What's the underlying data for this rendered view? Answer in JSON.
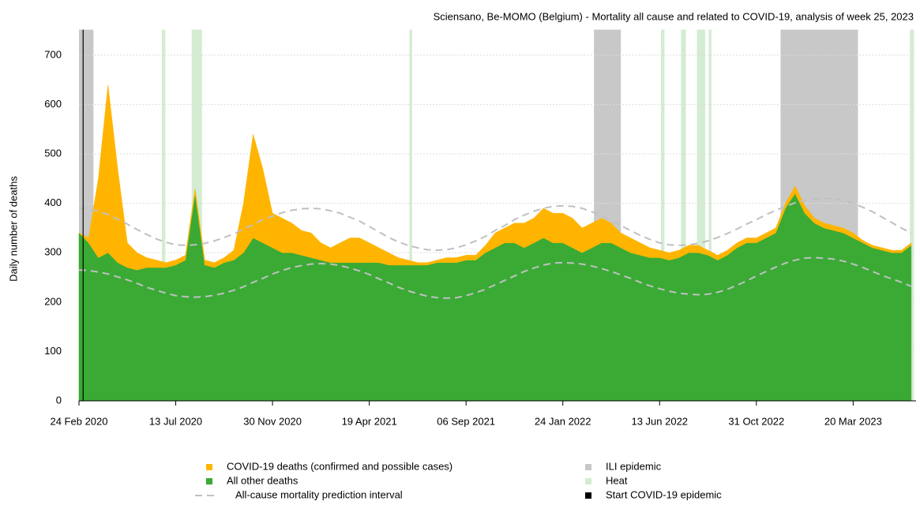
{
  "chart_data": {
    "type": "stacked_area",
    "title": "Sciensano, Be-MOMO (Belgium) - Mortality all cause and related to COVID-19, analysis of week 25, 2023",
    "y_label": "Daily number of deaths",
    "xlim": [
      "2020-02-24",
      "2023-06-19"
    ],
    "ylim": [
      0,
      755
    ],
    "yticks": [
      0,
      100,
      200,
      300,
      400,
      500,
      600,
      700
    ],
    "xticks": [
      {
        "value": "2020-02-24",
        "label": "24 Feb 2020"
      },
      {
        "value": "2020-07-13",
        "label": "13 Jul 2020"
      },
      {
        "value": "2020-11-30",
        "label": "30 Nov 2020"
      },
      {
        "value": "2021-04-19",
        "label": "19 Apr 2021"
      },
      {
        "value": "2021-09-06",
        "label": "06 Sep 2021"
      },
      {
        "value": "2022-01-24",
        "label": "24 Jan 2022"
      },
      {
        "value": "2022-06-13",
        "label": "13 Jun 2022"
      },
      {
        "value": "2022-10-31",
        "label": "31 Oct 2022"
      },
      {
        "value": "2023-03-20",
        "label": "20 Mar 2023"
      }
    ],
    "grid": true,
    "x": [
      "2020-02-24",
      "2020-03-09",
      "2020-03-23",
      "2020-04-06",
      "2020-04-20",
      "2020-05-04",
      "2020-05-18",
      "2020-06-01",
      "2020-06-15",
      "2020-06-29",
      "2020-07-13",
      "2020-07-27",
      "2020-08-10",
      "2020-08-24",
      "2020-09-07",
      "2020-09-21",
      "2020-10-05",
      "2020-10-19",
      "2020-11-02",
      "2020-11-16",
      "2020-11-30",
      "2020-12-14",
      "2020-12-28",
      "2021-01-11",
      "2021-01-25",
      "2021-02-08",
      "2021-02-22",
      "2021-03-08",
      "2021-03-22",
      "2021-04-05",
      "2021-04-19",
      "2021-05-03",
      "2021-05-17",
      "2021-05-31",
      "2021-06-14",
      "2021-06-28",
      "2021-07-12",
      "2021-07-26",
      "2021-08-09",
      "2021-08-23",
      "2021-09-06",
      "2021-09-20",
      "2021-10-04",
      "2021-10-18",
      "2021-11-01",
      "2021-11-15",
      "2021-11-29",
      "2021-12-13",
      "2021-12-27",
      "2022-01-10",
      "2022-01-24",
      "2022-02-07",
      "2022-02-21",
      "2022-03-07",
      "2022-03-21",
      "2022-04-04",
      "2022-04-18",
      "2022-05-02",
      "2022-05-16",
      "2022-05-30",
      "2022-06-13",
      "2022-06-27",
      "2022-07-11",
      "2022-07-25",
      "2022-08-08",
      "2022-08-22",
      "2022-09-05",
      "2022-09-19",
      "2022-10-03",
      "2022-10-17",
      "2022-10-31",
      "2022-11-14",
      "2022-11-28",
      "2022-12-12",
      "2022-12-26",
      "2023-01-09",
      "2023-01-23",
      "2023-02-06",
      "2023-02-20",
      "2023-03-06",
      "2023-03-20",
      "2023-04-03",
      "2023-04-17",
      "2023-05-01",
      "2023-05-15",
      "2023-05-29",
      "2023-06-12"
    ],
    "series": [
      {
        "name": "All other deaths",
        "color": "#3aaa35",
        "values": [
          340,
          320,
          290,
          300,
          280,
          270,
          265,
          270,
          270,
          270,
          275,
          285,
          420,
          275,
          270,
          280,
          285,
          300,
          330,
          320,
          310,
          300,
          300,
          295,
          290,
          285,
          280,
          280,
          280,
          280,
          280,
          280,
          275,
          275,
          275,
          275,
          275,
          280,
          280,
          280,
          285,
          285,
          300,
          310,
          320,
          320,
          310,
          320,
          330,
          320,
          320,
          310,
          300,
          310,
          320,
          320,
          310,
          300,
          295,
          290,
          290,
          285,
          290,
          300,
          300,
          295,
          285,
          295,
          310,
          320,
          320,
          330,
          340,
          390,
          420,
          380,
          360,
          350,
          345,
          340,
          330,
          320,
          310,
          305,
          300,
          300,
          315
        ]
      },
      {
        "name": "COVID-19 deaths (confirmed and possible cases)",
        "color": "#ffb500",
        "values": [
          0,
          10,
          160,
          340,
          190,
          50,
          35,
          20,
          15,
          10,
          10,
          10,
          10,
          10,
          10,
          10,
          20,
          100,
          210,
          150,
          70,
          70,
          60,
          50,
          50,
          35,
          30,
          40,
          50,
          50,
          40,
          30,
          25,
          15,
          10,
          5,
          5,
          5,
          10,
          10,
          10,
          10,
          15,
          30,
          30,
          40,
          50,
          50,
          60,
          60,
          60,
          60,
          50,
          50,
          50,
          40,
          30,
          30,
          25,
          20,
          15,
          15,
          15,
          15,
          15,
          10,
          10,
          10,
          10,
          10,
          10,
          10,
          10,
          10,
          15,
          15,
          10,
          10,
          10,
          10,
          10,
          5,
          5,
          5,
          5,
          5,
          5
        ]
      }
    ],
    "prediction_interval": {
      "name": "All-cause mortality prediction interval",
      "color": "#c0c0c0",
      "upper": [
        390,
        388.5,
        384,
        377,
        368,
        358,
        347,
        337,
        328,
        321,
        316,
        315,
        316,
        319,
        324,
        331,
        338,
        348,
        357,
        367,
        374,
        381,
        386,
        389,
        390,
        389,
        385,
        380,
        372,
        364,
        353,
        342,
        331,
        322,
        315,
        310,
        306,
        305,
        306,
        310,
        316,
        324,
        333,
        345,
        355,
        367,
        376,
        384,
        390,
        394,
        395,
        394,
        390,
        383,
        375,
        365,
        355,
        345,
        335,
        327,
        320,
        316,
        315,
        316,
        319,
        324,
        331,
        339,
        348,
        358,
        367,
        377,
        386,
        394,
        401,
        406,
        409,
        410,
        409,
        406,
        400,
        392,
        383,
        372,
        361,
        350,
        340
      ],
      "lower": [
        265,
        264,
        261,
        257,
        251,
        245,
        238,
        230,
        224,
        218,
        213,
        211,
        210,
        211,
        214,
        218,
        224,
        231,
        240,
        248,
        257,
        264,
        270,
        274,
        277,
        278,
        277,
        274,
        269,
        263,
        256,
        247,
        239,
        230,
        223,
        217,
        212,
        209,
        208,
        209,
        213,
        219,
        226,
        235,
        244,
        253,
        262,
        269,
        275,
        279,
        280,
        279,
        277,
        273,
        268,
        262,
        255,
        248,
        240,
        233,
        227,
        222,
        218,
        216,
        215,
        216,
        220,
        226,
        234,
        243,
        253,
        262,
        271,
        279,
        285,
        289,
        290,
        289,
        287,
        283,
        277,
        270,
        262,
        254,
        247,
        240,
        232
      ]
    },
    "ili": {
      "name": "ILI epidemic",
      "color": "#c8c8c8",
      "periods": [
        [
          "2020-02-24",
          "2020-03-16"
        ],
        [
          "2022-03-10",
          "2022-04-18"
        ],
        [
          "2022-12-05",
          "2023-03-27"
        ]
      ]
    },
    "heat": {
      "name": "Heat",
      "color": "#d4ecd2",
      "periods": [
        [
          "2020-06-23",
          "2020-06-28"
        ],
        [
          "2020-08-05",
          "2020-08-20"
        ],
        [
          "2021-06-16",
          "2021-06-20"
        ],
        [
          "2022-06-15",
          "2022-06-20"
        ],
        [
          "2022-07-14",
          "2022-07-21"
        ],
        [
          "2022-08-06",
          "2022-08-18"
        ],
        [
          "2022-08-23",
          "2022-08-27"
        ],
        [
          "2023-06-10",
          "2023-06-16"
        ]
      ]
    },
    "covid_start": {
      "name": "Start COVID-19 epidemic",
      "color": "#000000",
      "date": "2020-03-01"
    }
  }
}
